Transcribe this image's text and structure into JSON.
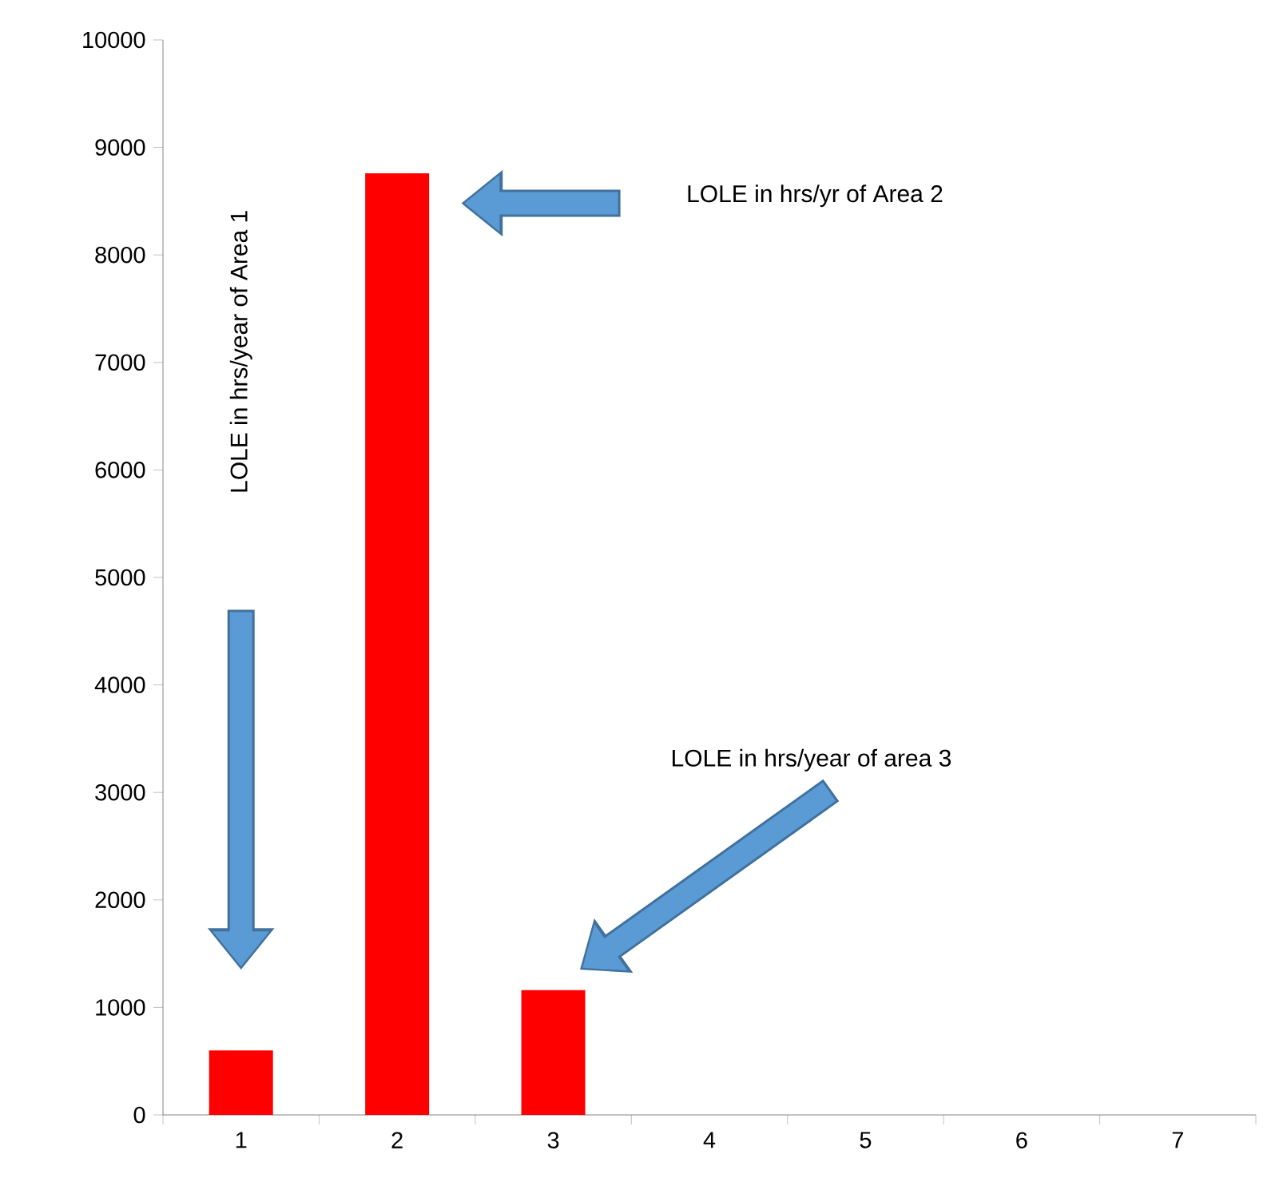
{
  "chart_data": {
    "type": "bar",
    "categories": [
      "1",
      "2",
      "3",
      "4",
      "5",
      "6",
      "7"
    ],
    "values": [
      600,
      8760,
      1160,
      null,
      null,
      null,
      null
    ],
    "color": "#ff0000",
    "ylim": [
      0,
      10000
    ],
    "yticks": [
      0,
      1000,
      2000,
      3000,
      4000,
      5000,
      6000,
      7000,
      8000,
      9000,
      10000
    ],
    "grid": false,
    "annotations": [
      "LOLE in hrs/year of Area 1",
      "LOLE in hrs/yr of Area 2",
      "LOLE in hrs/year of area 3"
    ]
  }
}
